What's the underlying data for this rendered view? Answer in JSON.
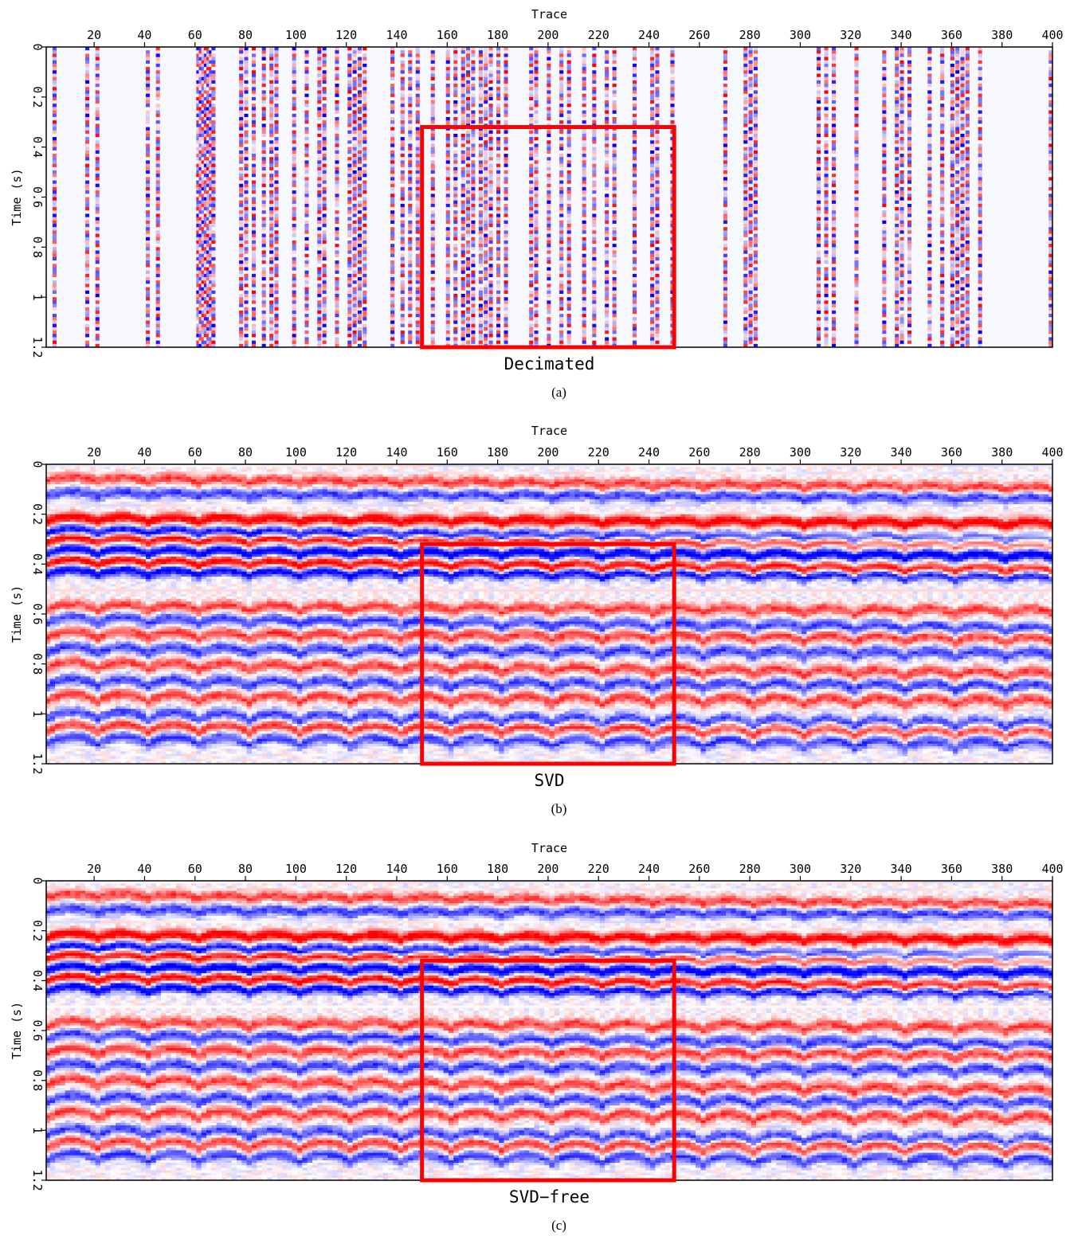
{
  "chart_data": [
    {
      "type": "heatmap",
      "panel_label": "(a)",
      "caption": "Decimated",
      "xlabel": "Trace",
      "ylabel": "Time (s)",
      "xlim": [
        1,
        400
      ],
      "ylim": [
        0,
        1.2
      ],
      "x_ticks": [
        20,
        40,
        60,
        80,
        100,
        120,
        140,
        160,
        180,
        200,
        220,
        240,
        260,
        280,
        300,
        320,
        340,
        360,
        380,
        400
      ],
      "x_tick_labels": [
        "20",
        "40",
        "60",
        "80",
        "100",
        "120",
        "140",
        "160",
        "180",
        "200",
        "220",
        "240",
        "260",
        "280",
        "300",
        "320",
        "340",
        "360",
        "380",
        "400"
      ],
      "y_ticks": [
        0,
        0.2,
        0.4,
        0.6,
        0.8,
        1.0,
        1.2
      ],
      "y_tick_labels": [
        "0",
        "0.2",
        "0.4",
        "0.6",
        "0.8",
        "1",
        "1.2"
      ],
      "colormap": [
        "#0000ff",
        "#ffffff",
        "#ff0000"
      ],
      "highlight_box": {
        "trace_range": [
          150,
          250
        ],
        "time_range": [
          0.32,
          1.2
        ],
        "color": "#ff0000"
      },
      "live_traces": [
        4,
        17,
        21,
        41,
        45,
        61,
        62,
        63,
        64,
        65,
        66,
        67,
        78,
        80,
        83,
        87,
        90,
        92,
        99,
        104,
        109,
        111,
        116,
        121,
        123,
        125,
        127,
        138,
        142,
        145,
        148,
        154,
        160,
        163,
        166,
        168,
        170,
        173,
        175,
        177,
        180,
        183,
        193,
        195,
        200,
        205,
        208,
        214,
        218,
        223,
        226,
        234,
        241,
        243,
        249,
        270,
        278,
        280,
        282,
        307,
        310,
        313,
        322,
        333,
        338,
        340,
        343,
        351,
        356,
        360,
        362,
        364,
        366,
        371,
        399
      ]
    },
    {
      "type": "heatmap",
      "panel_label": "(b)",
      "caption": "SVD",
      "xlabel": "Trace",
      "ylabel": "Time (s)",
      "xlim": [
        1,
        400
      ],
      "ylim": [
        0,
        1.2
      ],
      "x_ticks": [
        20,
        40,
        60,
        80,
        100,
        120,
        140,
        160,
        180,
        200,
        220,
        240,
        260,
        280,
        300,
        320,
        340,
        360,
        380,
        400
      ],
      "x_tick_labels": [
        "20",
        "40",
        "60",
        "80",
        "100",
        "120",
        "140",
        "160",
        "180",
        "200",
        "220",
        "240",
        "260",
        "280",
        "300",
        "320",
        "340",
        "360",
        "380",
        "400"
      ],
      "y_ticks": [
        0,
        0.2,
        0.4,
        0.6,
        0.8,
        1.0,
        1.2
      ],
      "y_tick_labels": [
        "0",
        "0.2",
        "0.4",
        "0.6",
        "0.8",
        "1",
        "1.2"
      ],
      "colormap": [
        "#0000ff",
        "#ffffff",
        "#ff0000"
      ],
      "highlight_box": {
        "trace_range": [
          150,
          250
        ],
        "time_range": [
          0.32,
          1.2
        ],
        "color": "#ff0000"
      },
      "events_time_s": [
        0.06,
        0.12,
        0.22,
        0.27,
        0.3,
        0.35,
        0.39,
        0.43,
        0.57,
        0.62,
        0.68,
        0.74,
        0.8,
        0.87,
        0.93,
        1.0,
        1.05,
        1.1
      ]
    },
    {
      "type": "heatmap",
      "panel_label": "(c)",
      "caption": "SVD−free",
      "xlabel": "Trace",
      "ylabel": "Time (s)",
      "xlim": [
        1,
        400
      ],
      "ylim": [
        0,
        1.2
      ],
      "x_ticks": [
        20,
        40,
        60,
        80,
        100,
        120,
        140,
        160,
        180,
        200,
        220,
        240,
        260,
        280,
        300,
        320,
        340,
        360,
        380,
        400
      ],
      "x_tick_labels": [
        "20",
        "40",
        "60",
        "80",
        "100",
        "120",
        "140",
        "160",
        "180",
        "200",
        "220",
        "240",
        "260",
        "280",
        "300",
        "320",
        "340",
        "360",
        "380",
        "400"
      ],
      "y_ticks": [
        0,
        0.2,
        0.4,
        0.6,
        0.8,
        1.0,
        1.2
      ],
      "y_tick_labels": [
        "0",
        "0.2",
        "0.4",
        "0.6",
        "0.8",
        "1",
        "1.2"
      ],
      "colormap": [
        "#0000ff",
        "#ffffff",
        "#ff0000"
      ],
      "highlight_box": {
        "trace_range": [
          150,
          250
        ],
        "time_range": [
          0.32,
          1.2
        ],
        "color": "#ff0000"
      },
      "events_time_s": [
        0.06,
        0.12,
        0.22,
        0.27,
        0.3,
        0.35,
        0.39,
        0.43,
        0.57,
        0.62,
        0.68,
        0.74,
        0.8,
        0.87,
        0.93,
        1.0,
        1.05,
        1.1
      ]
    }
  ]
}
